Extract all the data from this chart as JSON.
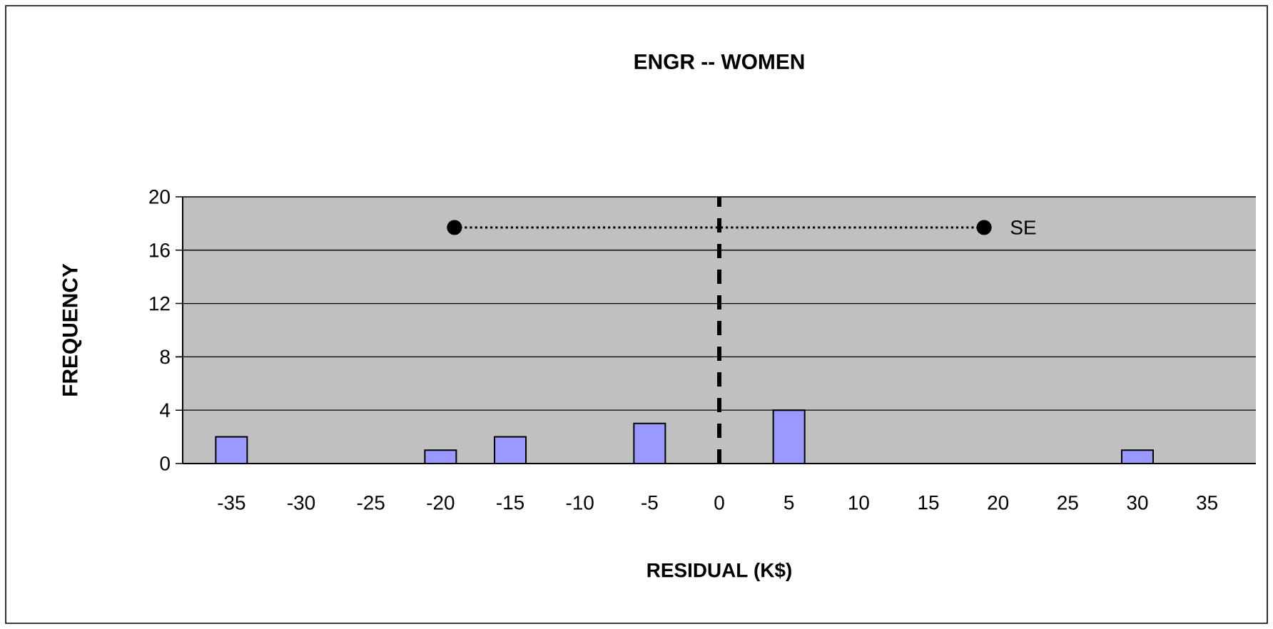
{
  "chart_data": {
    "type": "bar",
    "title": "ENGR -- WOMEN",
    "xlabel": "RESIDUAL (K$)",
    "ylabel": "FREQUENCY",
    "x": [
      -35,
      -30,
      -25,
      -20,
      -15,
      -10,
      -5,
      0,
      5,
      10,
      15,
      20,
      25,
      30,
      35
    ],
    "series": [
      {
        "color": "#9999ff",
        "values": [
          2,
          0,
          0,
          1,
          2,
          0,
          3,
          0,
          4,
          0,
          0,
          0,
          0,
          1,
          0
        ]
      },
      {
        "type": "line",
        "name": "SE",
        "color": "#000000",
        "x": [
          -19,
          19
        ],
        "values": [
          17.7,
          17.7
        ],
        "marker": "circle",
        "line_style": "dotted"
      }
    ],
    "xlim": [
      -38.5,
      38.5
    ],
    "xticks": [
      -35,
      -30,
      -25,
      -20,
      -15,
      -10,
      -5,
      0,
      5,
      10,
      15,
      20,
      25,
      30,
      35
    ],
    "ylim": [
      0,
      20
    ],
    "yticks": [
      0,
      4,
      8,
      12,
      16,
      20
    ],
    "grid": "y",
    "ref_lines": [
      {
        "axis": "x",
        "value": 0,
        "color": "#000000",
        "line_style": "dashed"
      }
    ]
  }
}
